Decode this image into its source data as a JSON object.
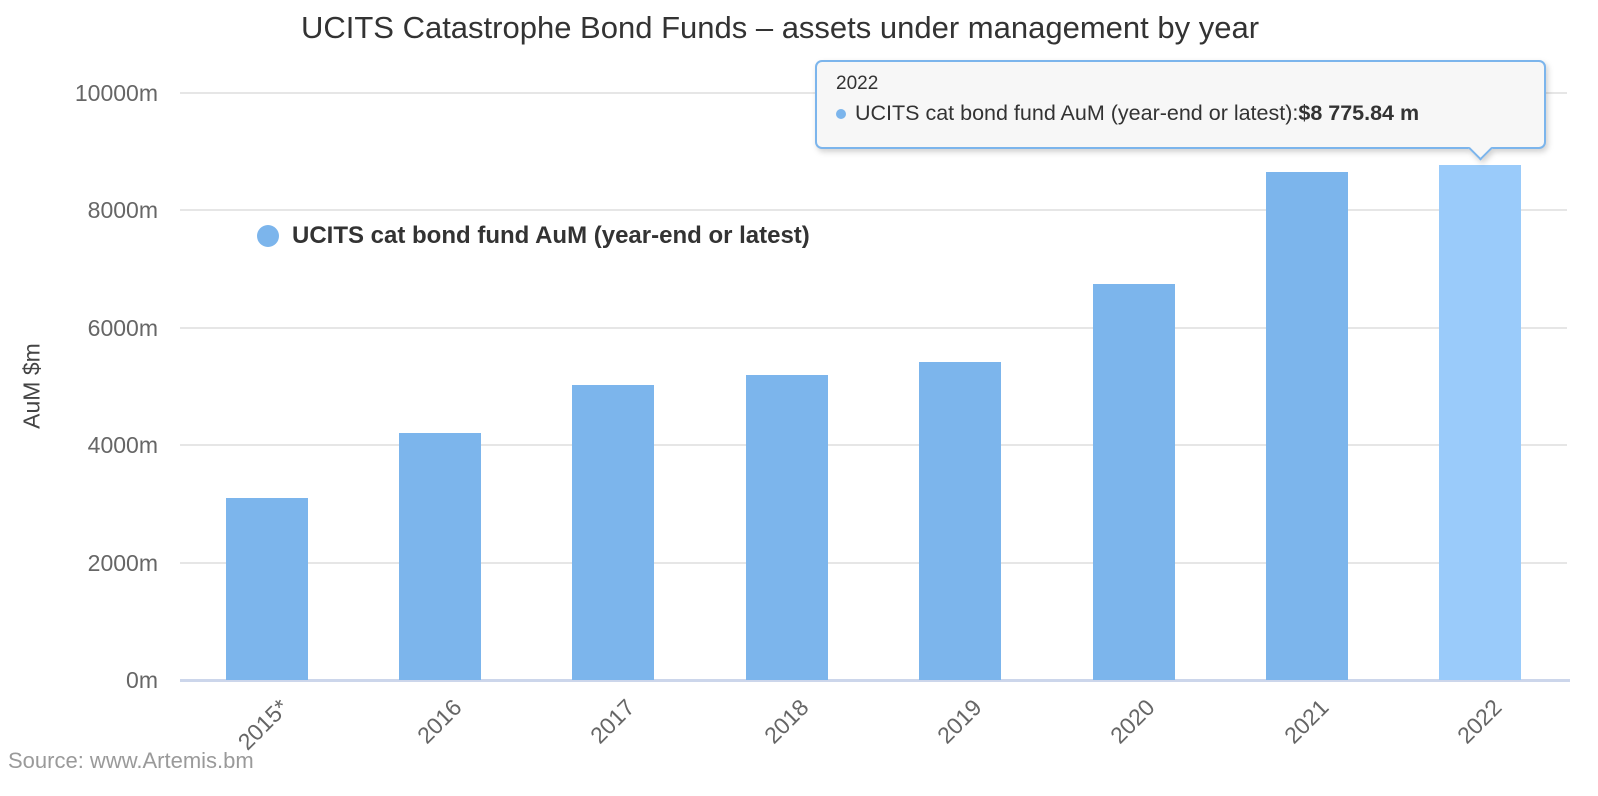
{
  "title": "UCITS Catastrophe Bond Funds – assets under management by year",
  "source": "Source: www.Artemis.bm",
  "colors": {
    "bar": "#7cb5ec",
    "bar_highlight": "#9acbfa",
    "gridline": "#e6e6e6",
    "axis_line": "#ccd6eb",
    "tooltip_background": "#f7f7f7",
    "tooltip_border": "#7cb5ec",
    "title_text": "#333333",
    "tick_text": "#666666",
    "source_text": "#9a9a9a"
  },
  "legend": {
    "label": "UCITS cat bond fund AuM (year-end or latest)",
    "marker_color": "#7cb5ec"
  },
  "tooltip": {
    "header": "2022",
    "bullet_color": "#7cb5ec",
    "series_label": "UCITS cat bond fund AuM (year-end or latest)",
    "separator": ": ",
    "value": "$8 775.84 m",
    "points_to_category": "2022"
  },
  "chart_data": {
    "type": "bar",
    "title": "UCITS Catastrophe Bond Funds – assets under management by year",
    "categories": [
      "2015*",
      "2016",
      "2017",
      "2018",
      "2019",
      "2020",
      "2021",
      "2022"
    ],
    "series": [
      {
        "name": "UCITS cat bond fund AuM (year-end or latest)",
        "values": [
          3100,
          4200,
          5020,
          5200,
          5420,
          6740,
          8660,
          8775.84
        ]
      }
    ],
    "highlight_index": 7,
    "xlabel": "",
    "ylabel": "AuM $m",
    "ylim": [
      0,
      10000
    ],
    "yticks": [
      {
        "value": 0,
        "label": "0m"
      },
      {
        "value": 2000,
        "label": "2000m"
      },
      {
        "value": 4000,
        "label": "4000m"
      },
      {
        "value": 6000,
        "label": "6000m"
      },
      {
        "value": 8000,
        "label": "8000m"
      },
      {
        "value": 10000,
        "label": "10000m"
      }
    ],
    "grid": true,
    "legend_position": "inside-top-left",
    "x_label_rotation": -45
  }
}
